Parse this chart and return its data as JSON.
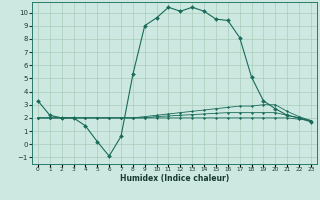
{
  "xlabel": "Humidex (Indice chaleur)",
  "background_color": "#cce8e0",
  "grid_color": "#aaccbb",
  "line_color": "#1a6b5a",
  "xlim": [
    -0.5,
    23.5
  ],
  "ylim": [
    -1.5,
    10.8
  ],
  "xticks": [
    0,
    1,
    2,
    3,
    4,
    5,
    6,
    7,
    8,
    9,
    10,
    11,
    12,
    13,
    14,
    15,
    16,
    17,
    18,
    19,
    20,
    21,
    22,
    23
  ],
  "yticks": [
    -1,
    0,
    1,
    2,
    3,
    4,
    5,
    6,
    7,
    8,
    9,
    10
  ],
  "series": [
    {
      "x": [
        0,
        1,
        2,
        3,
        4,
        5,
        6,
        7,
        8,
        9,
        10,
        11,
        12,
        13,
        14,
        15,
        16,
        17,
        18,
        19,
        20,
        21,
        22,
        23
      ],
      "y": [
        3.3,
        2.2,
        2.0,
        2.0,
        1.4,
        0.2,
        -0.9,
        0.6,
        5.3,
        9.0,
        9.6,
        10.4,
        10.1,
        10.4,
        10.1,
        9.5,
        9.4,
        8.1,
        5.1,
        3.3,
        2.7,
        2.2,
        2.0,
        1.7
      ]
    },
    {
      "x": [
        0,
        1,
        2,
        3,
        4,
        5,
        6,
        7,
        8,
        9,
        10,
        11,
        12,
        13,
        14,
        15,
        16,
        17,
        18,
        19,
        20,
        21,
        22,
        23
      ],
      "y": [
        2.0,
        2.0,
        2.0,
        2.0,
        2.0,
        2.0,
        2.0,
        2.0,
        2.0,
        2.1,
        2.2,
        2.3,
        2.4,
        2.5,
        2.6,
        2.7,
        2.8,
        2.9,
        2.9,
        3.0,
        3.0,
        2.5,
        2.1,
        1.8
      ]
    },
    {
      "x": [
        0,
        1,
        2,
        3,
        4,
        5,
        6,
        7,
        8,
        9,
        10,
        11,
        12,
        13,
        14,
        15,
        16,
        17,
        18,
        19,
        20,
        21,
        22,
        23
      ],
      "y": [
        2.0,
        2.0,
        2.0,
        2.0,
        2.0,
        2.0,
        2.0,
        2.0,
        2.0,
        2.0,
        2.1,
        2.15,
        2.2,
        2.25,
        2.3,
        2.35,
        2.4,
        2.4,
        2.4,
        2.4,
        2.4,
        2.2,
        2.0,
        1.8
      ]
    },
    {
      "x": [
        0,
        1,
        2,
        3,
        4,
        5,
        6,
        7,
        8,
        9,
        10,
        11,
        12,
        13,
        14,
        15,
        16,
        17,
        18,
        19,
        20,
        21,
        22,
        23
      ],
      "y": [
        2.0,
        2.0,
        2.0,
        2.0,
        2.0,
        2.0,
        2.0,
        2.0,
        2.0,
        2.0,
        2.0,
        2.0,
        2.0,
        2.0,
        2.0,
        2.0,
        2.0,
        2.0,
        2.0,
        2.0,
        2.0,
        2.0,
        1.9,
        1.8
      ]
    }
  ]
}
